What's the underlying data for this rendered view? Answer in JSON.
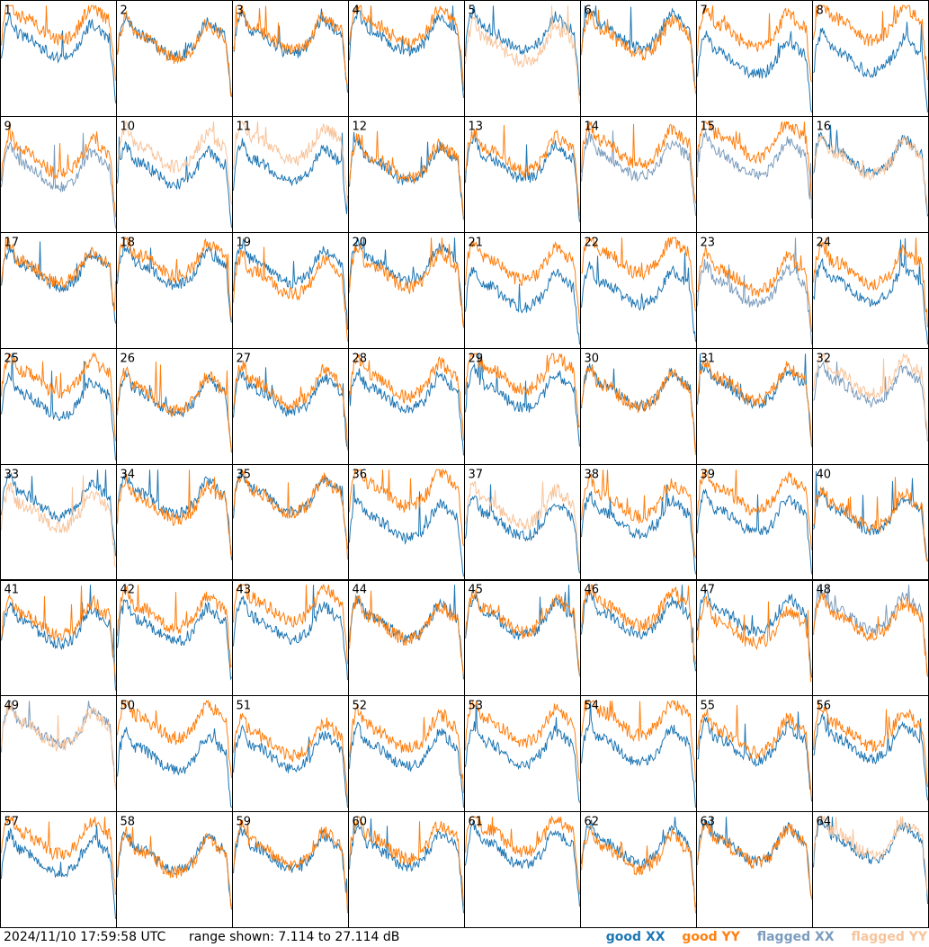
{
  "footer": {
    "timestamp": "2024/11/10 17:59:58 UTC",
    "range_text": "range shown: 7.114 to 27.114 dB"
  },
  "legend": [
    {
      "prefix": "good",
      "pol": "XX",
      "color": "#1f77b4"
    },
    {
      "prefix": "good",
      "pol": "YY",
      "color": "#ff7f0e"
    },
    {
      "prefix": "flagged",
      "pol": "XX",
      "color": "#7b9cbd"
    },
    {
      "prefix": "flagged",
      "pol": "YY",
      "color": "#f7c49b"
    }
  ],
  "colors": {
    "good_xx": "#1f77b4",
    "good_yy": "#ff7f0e",
    "flagged_xx": "#7b9cbd",
    "flagged_yy": "#f7c49b"
  },
  "chart_data": {
    "type": "line",
    "layout": "small-multiples",
    "rows": 8,
    "cols": 8,
    "ylim": [
      7.114,
      27.114
    ],
    "yunit": "dB",
    "panels": [
      {
        "id": "1",
        "xx": "good",
        "yy": "good"
      },
      {
        "id": "2",
        "xx": "good",
        "yy": "good"
      },
      {
        "id": "3",
        "xx": "good",
        "yy": "good"
      },
      {
        "id": "4",
        "xx": "good",
        "yy": "good"
      },
      {
        "id": "5",
        "xx": "good",
        "yy": "flagged"
      },
      {
        "id": "6",
        "xx": "good",
        "yy": "good"
      },
      {
        "id": "7",
        "xx": "good",
        "yy": "good"
      },
      {
        "id": "8",
        "xx": "good",
        "yy": "good"
      },
      {
        "id": "9",
        "xx": "flagged",
        "yy": "good"
      },
      {
        "id": "10",
        "xx": "good",
        "yy": "flagged"
      },
      {
        "id": "11",
        "xx": "good",
        "yy": "flagged"
      },
      {
        "id": "12",
        "xx": "good",
        "yy": "good"
      },
      {
        "id": "13",
        "xx": "good",
        "yy": "good"
      },
      {
        "id": "14",
        "xx": "flagged",
        "yy": "good"
      },
      {
        "id": "15",
        "xx": "flagged",
        "yy": "good"
      },
      {
        "id": "16",
        "xx": "good",
        "yy": "flagged"
      },
      {
        "id": "17",
        "xx": "good",
        "yy": "good"
      },
      {
        "id": "18",
        "xx": "good",
        "yy": "good"
      },
      {
        "id": "19",
        "xx": "good",
        "yy": "good"
      },
      {
        "id": "20",
        "xx": "good",
        "yy": "good"
      },
      {
        "id": "21",
        "xx": "good",
        "yy": "good"
      },
      {
        "id": "22",
        "xx": "good",
        "yy": "good"
      },
      {
        "id": "23",
        "xx": "flagged",
        "yy": "good"
      },
      {
        "id": "24",
        "xx": "good",
        "yy": "good"
      },
      {
        "id": "25",
        "xx": "good",
        "yy": "good"
      },
      {
        "id": "26",
        "xx": "good",
        "yy": "good"
      },
      {
        "id": "27",
        "xx": "good",
        "yy": "good"
      },
      {
        "id": "28",
        "xx": "good",
        "yy": "good"
      },
      {
        "id": "29",
        "xx": "good",
        "yy": "good"
      },
      {
        "id": "30",
        "xx": "good",
        "yy": "good"
      },
      {
        "id": "31",
        "xx": "good",
        "yy": "good"
      },
      {
        "id": "32",
        "xx": "flagged",
        "yy": "flagged"
      },
      {
        "id": "33",
        "xx": "good",
        "yy": "flagged"
      },
      {
        "id": "34",
        "xx": "good",
        "yy": "good"
      },
      {
        "id": "35",
        "xx": "good",
        "yy": "good"
      },
      {
        "id": "36",
        "xx": "good",
        "yy": "good"
      },
      {
        "id": "37",
        "xx": "good",
        "yy": "flagged"
      },
      {
        "id": "38",
        "xx": "good",
        "yy": "good"
      },
      {
        "id": "39",
        "xx": "good",
        "yy": "good"
      },
      {
        "id": "40",
        "xx": "good",
        "yy": "good"
      },
      {
        "id": "41",
        "xx": "good",
        "yy": "good"
      },
      {
        "id": "42",
        "xx": "good",
        "yy": "good"
      },
      {
        "id": "43",
        "xx": "good",
        "yy": "good"
      },
      {
        "id": "44",
        "xx": "good",
        "yy": "good"
      },
      {
        "id": "45",
        "xx": "good",
        "yy": "good"
      },
      {
        "id": "46",
        "xx": "good",
        "yy": "good"
      },
      {
        "id": "47",
        "xx": "good",
        "yy": "good"
      },
      {
        "id": "48",
        "xx": "flagged",
        "yy": "good"
      },
      {
        "id": "49",
        "xx": "flagged",
        "yy": "flagged"
      },
      {
        "id": "50",
        "xx": "good",
        "yy": "good"
      },
      {
        "id": "51",
        "xx": "good",
        "yy": "good"
      },
      {
        "id": "52",
        "xx": "good",
        "yy": "good"
      },
      {
        "id": "53",
        "xx": "good",
        "yy": "good"
      },
      {
        "id": "54",
        "xx": "good",
        "yy": "good"
      },
      {
        "id": "55",
        "xx": "good",
        "yy": "good"
      },
      {
        "id": "56",
        "xx": "good",
        "yy": "good"
      },
      {
        "id": "57",
        "xx": "good",
        "yy": "good"
      },
      {
        "id": "58",
        "xx": "good",
        "yy": "good"
      },
      {
        "id": "59",
        "xx": "good",
        "yy": "good"
      },
      {
        "id": "60",
        "xx": "good",
        "yy": "good"
      },
      {
        "id": "61",
        "xx": "good",
        "yy": "good"
      },
      {
        "id": "62",
        "xx": "good",
        "yy": "good"
      },
      {
        "id": "63",
        "xx": "good",
        "yy": "good"
      },
      {
        "id": "64",
        "xx": "good",
        "yy": "flagged"
      }
    ]
  }
}
